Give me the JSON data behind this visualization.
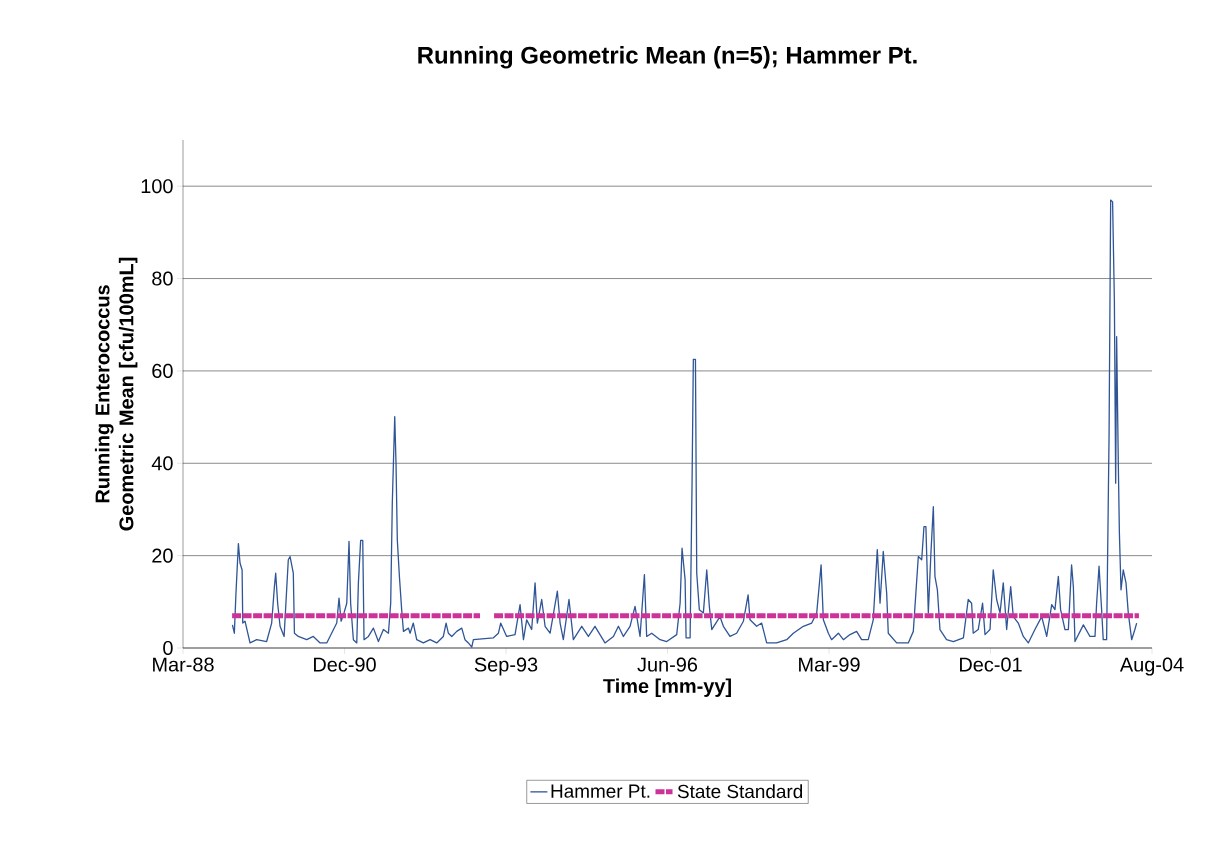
{
  "chart_data": {
    "type": "line",
    "title": "Running Geometric Mean (n=5); Hammer Pt.",
    "xlabel": "Time [mm-yy]",
    "ylabel": "Running Enterococcus Geometric Mean [cfu/100mL]",
    "xlim": [
      "1988-03-25",
      "2004-08-28"
    ],
    "xticks": [
      {
        "value": "1988-03-25",
        "label": "Mar-88"
      },
      {
        "value": "1990-12-20",
        "label": "Dec-90"
      },
      {
        "value": "1993-09-15",
        "label": "Sep-93"
      },
      {
        "value": "1996-06-11",
        "label": "Jun-96"
      },
      {
        "value": "1999-03-08",
        "label": "Mar-99"
      },
      {
        "value": "2001-12-02",
        "label": "Dec-01"
      },
      {
        "value": "2004-08-28",
        "label": "Aug-04"
      }
    ],
    "ylim": [
      0,
      110
    ],
    "yticks": [
      0,
      20,
      40,
      60,
      80,
      100
    ],
    "grid": "y",
    "legend": "bottom",
    "marker": "none",
    "series": [
      {
        "name": "Hammer Pt.",
        "color": "#2f5597",
        "line_style": "solid",
        "x": [
          "1989-01-25",
          "1989-02-06",
          "1989-02-16",
          "1989-03-03",
          "1989-03-13",
          "1989-03-26",
          "1989-03-30",
          "1989-04-13",
          "1989-05-14",
          "1989-06-24",
          "1989-08-25",
          "1989-09-25",
          "1989-10-12",
          "1989-10-20",
          "1989-11-01",
          "1989-11-16",
          "1989-12-11",
          "1990-01-06",
          "1990-01-17",
          "1990-02-06",
          "1990-02-13",
          "1990-03-09",
          "1990-04-30",
          "1990-06-10",
          "1990-07-22",
          "1990-09-01",
          "1990-11-02",
          "1990-11-16",
          "1990-11-29",
          "1990-12-17",
          "1991-01-03",
          "1991-01-17",
          "1991-01-27",
          "1991-02-13",
          "1991-03-06",
          "1991-03-16",
          "1991-03-30",
          "1991-04-12",
          "1991-04-20",
          "1991-05-17",
          "1991-06-17",
          "1991-07-18",
          "1991-08-18",
          "1991-09-18",
          "1991-10-02",
          "1991-10-12",
          "1991-10-27",
          "1991-11-04",
          "1991-11-12",
          "1991-11-25",
          "1991-12-09",
          "1991-12-20",
          "1992-01-20",
          "1992-01-30",
          "1992-02-19",
          "1992-03-11",
          "1992-04-21",
          "1992-06-02",
          "1992-07-13",
          "1992-08-23",
          "1992-09-09",
          "1992-09-23",
          "1992-10-14",
          "1992-11-14",
          "1992-12-15",
          "1993-01-04",
          "1993-01-25",
          "1993-02-15",
          "1993-02-25",
          "1993-06-29",
          "1993-07-30",
          "1993-08-13",
          "1993-09-19",
          "1993-11-10",
          "1993-12-11",
          "1994-01-01",
          "1994-01-21",
          "1994-02-21",
          "1994-03-14",
          "1994-03-28",
          "1994-04-24",
          "1994-05-15",
          "1994-06-15",
          "1994-07-30",
          "1994-08-16",
          "1994-09-05",
          "1994-10-10",
          "1994-11-06",
          "1994-12-28",
          "1995-02-07",
          "1995-03-20",
          "1995-05-21",
          "1995-07-12",
          "1995-08-12",
          "1995-09-12",
          "1995-10-23",
          "1995-11-23",
          "1995-12-24",
          "1996-01-20",
          "1996-02-03",
          "1996-03-05",
          "1996-04-26",
          "1996-06-06",
          "1996-08-07",
          "1996-08-28",
          "1996-09-09",
          "1996-09-28",
          "1996-10-04",
          "1996-10-29",
          "1996-11-10",
          "1996-11-18",
          "1996-12-01",
          "1996-12-09",
          "1996-12-25",
          "1997-01-19",
          "1997-02-09",
          "1997-02-25",
          "1997-03-12",
          "1997-05-02",
          "1997-05-23",
          "1997-07-03",
          "1997-08-13",
          "1997-09-24",
          "1997-10-23",
          "1997-11-04",
          "1997-12-15",
          "1998-01-15",
          "1998-02-15",
          "1998-04-18",
          "1998-06-19",
          "1998-07-30",
          "1998-09-30",
          "1998-11-21",
          "1998-12-22",
          "1999-01-18",
          "1999-02-01",
          "1999-03-04",
          "1999-03-24",
          "1999-05-05",
          "1999-06-05",
          "1999-07-16",
          "1999-08-26",
          "1999-09-26",
          "1999-11-06",
          "1999-12-07",
          "2000-01-01",
          "2000-01-18",
          "2000-02-07",
          "2000-02-28",
          "2000-03-09",
          "2000-04-30",
          "2000-07-11",
          "2000-08-11",
          "2000-09-11",
          "2000-10-02",
          "2000-10-16",
          "2000-10-28",
          "2000-11-12",
          "2000-11-28",
          "2000-12-13",
          "2000-12-23",
          "2001-01-07",
          "2001-01-23",
          "2001-03-05",
          "2001-04-16",
          "2001-06-17",
          "2001-07-17",
          "2001-08-07",
          "2001-08-17",
          "2001-09-17",
          "2001-10-14",
          "2001-10-29",
          "2001-11-29",
          "2001-12-19",
          "2002-01-09",
          "2002-01-30",
          "2002-02-19",
          "2002-03-12",
          "2002-04-06",
          "2002-04-22",
          "2002-05-23",
          "2002-06-23",
          "2002-07-24",
          "2002-09-03",
          "2002-10-15",
          "2002-11-15",
          "2002-12-16",
          "2003-01-05",
          "2003-01-26",
          "2003-02-09",
          "2003-03-08",
          "2003-03-29",
          "2003-04-18",
          "2003-04-29",
          "2003-05-09",
          "2003-06-30",
          "2003-08-10",
          "2003-09-10",
          "2003-09-20",
          "2003-10-05",
          "2003-10-21",
          "2003-10-31",
          "2003-11-21",
          "2003-12-06",
          "2003-12-16",
          "2003-12-28",
          "2004-01-08",
          "2004-01-16",
          "2004-01-22",
          "2004-02-01",
          "2004-02-08",
          "2004-02-18",
          "2004-03-03",
          "2004-03-20",
          "2004-04-03",
          "2004-04-24",
          "2004-05-14",
          "2004-05-25"
        ],
        "values": [
          5.0,
          3.2,
          11.9,
          22.6,
          18.4,
          16.9,
          5.4,
          5.8,
          1.1,
          1.8,
          1.4,
          5.4,
          13.3,
          16.2,
          9.7,
          4.7,
          2.5,
          19.1,
          19.8,
          16.2,
          3.2,
          2.5,
          1.8,
          2.5,
          1.1,
          1.1,
          5.4,
          10.8,
          5.8,
          7.6,
          9.7,
          23.1,
          9.7,
          1.8,
          1.1,
          14.1,
          23.3,
          23.3,
          1.8,
          2.5,
          4.3,
          1.4,
          4.0,
          3.2,
          9.7,
          31.4,
          50.1,
          40.0,
          23.4,
          15.5,
          8.3,
          3.6,
          4.3,
          3.2,
          5.4,
          1.8,
          1.1,
          1.8,
          1.1,
          2.5,
          5.4,
          3.2,
          2.5,
          3.6,
          4.3,
          1.8,
          1.1,
          0.2,
          1.8,
          2.2,
          3.2,
          5.4,
          2.5,
          2.9,
          9.4,
          1.8,
          6.1,
          4.0,
          14.1,
          5.4,
          10.5,
          4.7,
          3.2,
          12.3,
          5.4,
          1.8,
          10.5,
          1.8,
          4.7,
          2.5,
          4.7,
          1.1,
          2.5,
          4.7,
          2.5,
          4.7,
          9.0,
          2.5,
          15.9,
          2.5,
          3.2,
          1.8,
          1.4,
          2.9,
          9.7,
          21.6,
          14.8,
          2.2,
          2.2,
          35.7,
          62.5,
          62.5,
          16.2,
          8.3,
          7.6,
          16.9,
          9.0,
          4.0,
          6.8,
          4.7,
          2.5,
          3.2,
          5.8,
          11.5,
          6.1,
          4.7,
          5.4,
          1.1,
          1.1,
          1.8,
          3.2,
          4.7,
          5.4,
          7.6,
          18.0,
          6.1,
          3.2,
          1.8,
          3.2,
          1.8,
          2.9,
          3.6,
          1.8,
          1.8,
          6.1,
          21.3,
          9.7,
          20.9,
          11.9,
          3.2,
          1.1,
          1.1,
          3.6,
          19.8,
          19.1,
          26.3,
          26.3,
          7.6,
          20.5,
          30.6,
          15.5,
          12.6,
          4.0,
          1.8,
          1.4,
          2.2,
          10.5,
          9.7,
          3.2,
          4.0,
          9.7,
          2.9,
          4.0,
          16.9,
          10.5,
          7.6,
          14.1,
          4.0,
          13.3,
          6.8,
          5.4,
          2.5,
          1.1,
          4.0,
          6.8,
          2.5,
          9.4,
          8.3,
          15.5,
          8.3,
          4.0,
          4.0,
          18.0,
          13.3,
          1.4,
          5.0,
          2.5,
          2.5,
          9.7,
          17.7,
          8.3,
          1.8,
          1.8,
          45.8,
          97.0,
          96.6,
          75.3,
          35.7,
          67.4,
          40.7,
          24.9,
          12.6,
          16.9,
          14.1,
          7.6,
          1.8,
          4.0,
          5.4
        ]
      },
      {
        "name": "State Standard",
        "color": "#cc3399",
        "line_style": "dashed",
        "x": [
          "1989-01-23",
          "1993-04-07",
          "1993-05-20",
          "1993-07-03",
          "2004-06-08"
        ],
        "values": [
          7,
          7,
          null,
          7,
          7
        ]
      }
    ]
  }
}
